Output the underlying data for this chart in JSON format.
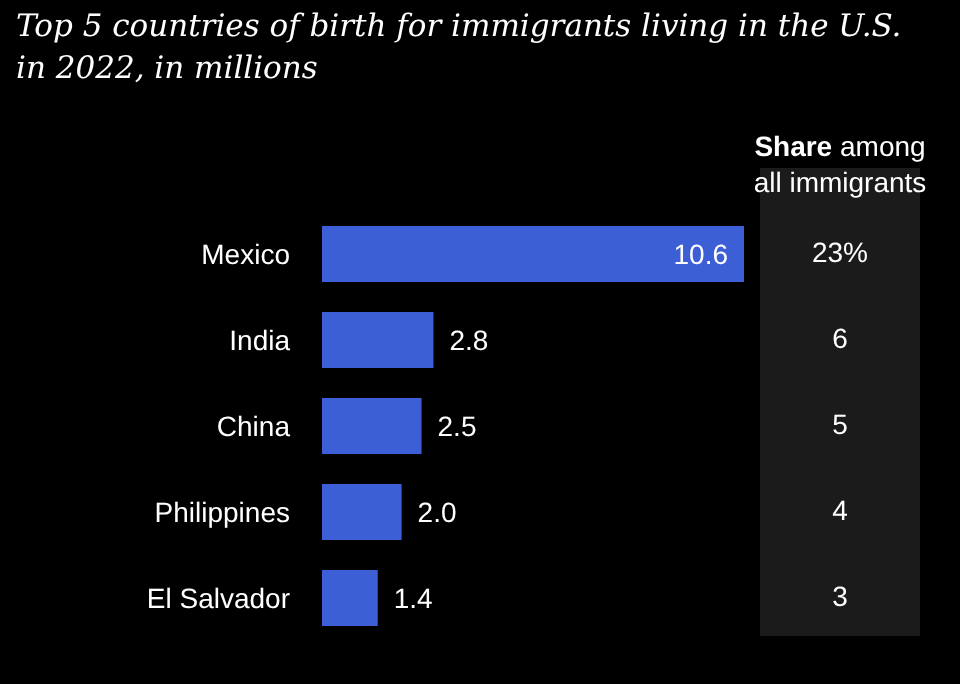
{
  "chart_data": {
    "type": "bar",
    "orientation": "horizontal",
    "title": "Top 5 countries of birth for immigrants living in the U.S. in 2022, in millions",
    "categories": [
      "Mexico",
      "India",
      "China",
      "Philippines",
      "El Salvador"
    ],
    "values": [
      10.6,
      2.8,
      2.5,
      2.0,
      1.4
    ],
    "value_labels": [
      "10.6",
      "2.8",
      "2.5",
      "2.0",
      "1.4"
    ],
    "color": "#3d5fd6",
    "annotations": [
      "Share among all immigrants",
      "23%",
      "6",
      "5",
      "4",
      "3"
    ]
  }
}
